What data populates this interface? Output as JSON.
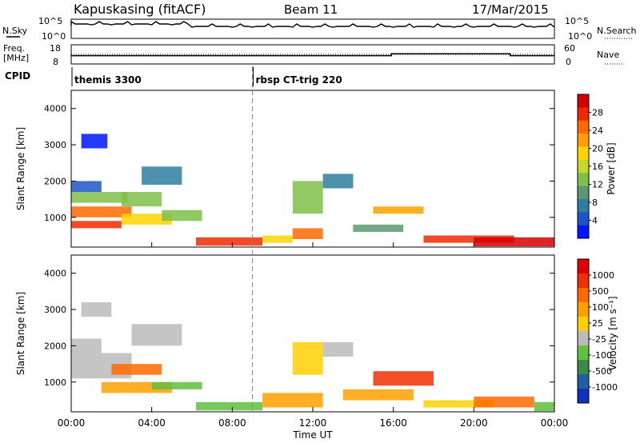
{
  "header": {
    "station": "Kapuskasing (fitACF)",
    "beam": "Beam 11",
    "date": "17/Mar/2015"
  },
  "status": {
    "nsky_label": "N.Sky",
    "nsearch_label": "N.Search",
    "nsky_ticks": [
      "10^5",
      "10^0"
    ],
    "nsearch_ticks": [
      "10^5",
      "10^0"
    ],
    "freq_label": "Freq.",
    "freq_unit": "[MHz]",
    "freq_ticks": [
      "18",
      "8"
    ],
    "nave_label": "Nave",
    "nave_ticks": [
      "60",
      "0"
    ],
    "cpid_label": "CPID",
    "cpid_segments": [
      {
        "name": "themis 3300",
        "start_hour": 0,
        "end_hour": 9
      },
      {
        "name": "rbsp CT-trig 220",
        "start_hour": 9,
        "end_hour": 24
      }
    ],
    "freq_mhz": 10,
    "nave_steps": [
      {
        "start_hour": 0,
        "end_hour": 15.9,
        "value": 26
      },
      {
        "start_hour": 15.9,
        "end_hour": 21.8,
        "value": 32
      },
      {
        "start_hour": 21.8,
        "end_hour": 24,
        "value": 26
      }
    ]
  },
  "chart_data": [
    {
      "type": "heatmap",
      "panel": "power",
      "ylabel": "Slant Range [km]",
      "xlabel": "Time UT",
      "x_range_hours": [
        0,
        24
      ],
      "ylim": [
        180,
        4500
      ],
      "yticks": [
        "1000",
        "2000",
        "3000",
        "4000"
      ],
      "xticks": [
        "00:00",
        "04:00",
        "08:00",
        "12:00",
        "16:00",
        "20:00",
        "00:00"
      ],
      "colorbar": {
        "label": "Power [dB]",
        "ticks": [
          "4",
          "8",
          "12",
          "16",
          "20",
          "24",
          "28"
        ],
        "colors": [
          "#0018ff",
          "#1f55c8",
          "#2d7fa0",
          "#5a9a6e",
          "#7fc04a",
          "#c8d82a",
          "#ffd400",
          "#ffa000",
          "#ff6a00",
          "#f02a00",
          "#d40000"
        ]
      },
      "cells": [
        {
          "t0": 0.0,
          "t1": 2.5,
          "r0": 700,
          "r1": 900,
          "v": 9
        },
        {
          "t0": 0.0,
          "t1": 3.0,
          "r0": 1000,
          "r1": 1300,
          "v": 8
        },
        {
          "t0": 0.0,
          "t1": 2.8,
          "r0": 1400,
          "r1": 1700,
          "v": 4
        },
        {
          "t0": 0.0,
          "t1": 1.5,
          "r0": 1700,
          "r1": 2000,
          "v": 1
        },
        {
          "t0": 0.5,
          "t1": 1.8,
          "r0": 2900,
          "r1": 3300,
          "v": 0
        },
        {
          "t0": 2.5,
          "t1": 5.0,
          "r0": 800,
          "r1": 1100,
          "v": 6
        },
        {
          "t0": 2.5,
          "t1": 4.5,
          "r0": 1300,
          "r1": 1700,
          "v": 4
        },
        {
          "t0": 3.5,
          "t1": 5.5,
          "r0": 1900,
          "r1": 2400,
          "v": 2
        },
        {
          "t0": 4.5,
          "t1": 6.5,
          "r0": 900,
          "r1": 1200,
          "v": 4
        },
        {
          "t0": 6.2,
          "t1": 9.5,
          "r0": 220,
          "r1": 450,
          "v": 9
        },
        {
          "t0": 9.5,
          "t1": 11.0,
          "r0": 300,
          "r1": 500,
          "v": 6
        },
        {
          "t0": 11.0,
          "t1": 12.5,
          "r0": 400,
          "r1": 700,
          "v": 8
        },
        {
          "t0": 11.0,
          "t1": 12.5,
          "r0": 1100,
          "r1": 2000,
          "v": 4
        },
        {
          "t0": 12.5,
          "t1": 14.0,
          "r0": 1800,
          "r1": 2200,
          "v": 2
        },
        {
          "t0": 14.0,
          "t1": 16.5,
          "r0": 600,
          "r1": 800,
          "v": 3
        },
        {
          "t0": 15.0,
          "t1": 17.5,
          "r0": 1100,
          "r1": 1300,
          "v": 7
        },
        {
          "t0": 17.5,
          "t1": 22.0,
          "r0": 300,
          "r1": 500,
          "v": 9
        },
        {
          "t0": 20.0,
          "t1": 24.0,
          "r0": 200,
          "r1": 450,
          "v": 10
        }
      ]
    },
    {
      "type": "heatmap",
      "panel": "velocity",
      "ylabel": "Slant Range [km]",
      "xlabel": "Time UT",
      "x_range_hours": [
        0,
        24
      ],
      "ylim": [
        180,
        4500
      ],
      "yticks": [
        "1000",
        "2000",
        "3000",
        "4000"
      ],
      "xticks": [
        "00:00",
        "04:00",
        "08:00",
        "12:00",
        "16:00",
        "20:00",
        "00:00"
      ],
      "colorbar": {
        "label": "Velocity [m s⁻¹]",
        "ticks": [
          "1000",
          "500",
          "100",
          "25",
          "-25",
          "-100",
          "-500",
          "-1000"
        ],
        "colors": [
          "#1030c0",
          "#2060a0",
          "#3a8a4a",
          "#60c040",
          "#bbbbbb",
          "#ffd000",
          "#ffa000",
          "#ff6a00",
          "#f03000",
          "#e00000"
        ]
      },
      "cells": [
        {
          "t0": 0.0,
          "t1": 3.0,
          "r0": 1100,
          "r1": 1800,
          "v": 4
        },
        {
          "t0": 0.0,
          "t1": 1.5,
          "r0": 1800,
          "r1": 2200,
          "v": 4
        },
        {
          "t0": 0.5,
          "t1": 2.0,
          "r0": 2800,
          "r1": 3200,
          "v": 4
        },
        {
          "t0": 3.0,
          "t1": 5.5,
          "r0": 2000,
          "r1": 2600,
          "v": 4
        },
        {
          "t0": 1.5,
          "t1": 5.0,
          "r0": 700,
          "r1": 1000,
          "v": 6
        },
        {
          "t0": 2.0,
          "t1": 4.5,
          "r0": 1200,
          "r1": 1500,
          "v": 7
        },
        {
          "t0": 4.0,
          "t1": 6.5,
          "r0": 800,
          "r1": 1000,
          "v": 3
        },
        {
          "t0": 6.2,
          "t1": 9.5,
          "r0": 220,
          "r1": 450,
          "v": 3
        },
        {
          "t0": 9.5,
          "t1": 12.5,
          "r0": 300,
          "r1": 700,
          "v": 6
        },
        {
          "t0": 11.0,
          "t1": 12.5,
          "r0": 1200,
          "r1": 2100,
          "v": 5
        },
        {
          "t0": 12.5,
          "t1": 14.0,
          "r0": 1700,
          "r1": 2100,
          "v": 4
        },
        {
          "t0": 15.0,
          "t1": 18.0,
          "r0": 900,
          "r1": 1300,
          "v": 8
        },
        {
          "t0": 13.5,
          "t1": 17.0,
          "r0": 500,
          "r1": 800,
          "v": 6
        },
        {
          "t0": 17.5,
          "t1": 21.0,
          "r0": 300,
          "r1": 500,
          "v": 5
        },
        {
          "t0": 20.0,
          "t1": 23.0,
          "r0": 300,
          "r1": 600,
          "v": 7
        },
        {
          "t0": 23.0,
          "t1": 24.0,
          "r0": 200,
          "r1": 450,
          "v": 3
        }
      ]
    }
  ]
}
